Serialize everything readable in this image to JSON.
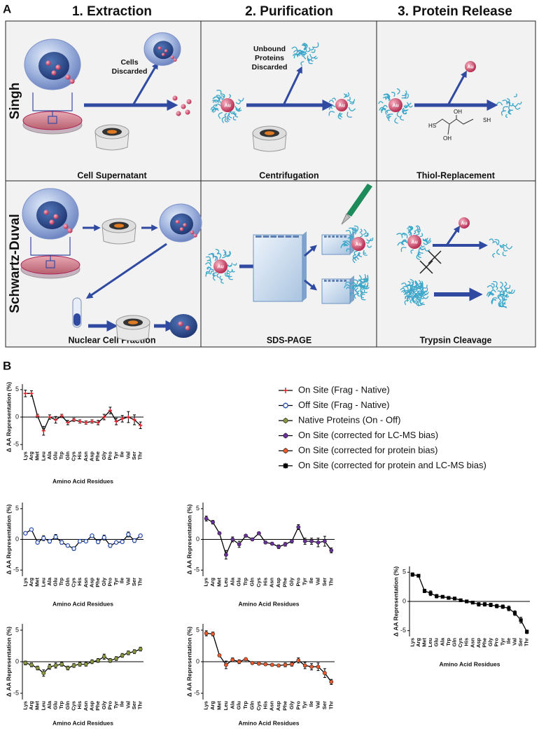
{
  "panel_a": {
    "label": "A",
    "columns": [
      "1. Extraction",
      "2. Purification",
      "3. Protein Release"
    ],
    "rows": [
      "Singh",
      "Schwartz-Duval"
    ],
    "captions": [
      [
        "Cell Supernatant",
        "Centrifugation",
        "Thiol-Replacement"
      ],
      [
        "Nuclear Cell Fraction",
        "SDS-PAGE",
        "Trypsin Cleavage"
      ]
    ],
    "cells_discarded": [
      "Cells",
      "Discarded"
    ],
    "proteins_discarded": [
      "Unbound",
      "Proteins",
      "Discarded"
    ],
    "au_label": "Au",
    "chem_labels": [
      "HS",
      "OH",
      "OH",
      "SH"
    ]
  },
  "panel_b": {
    "label": "B"
  },
  "chart_data": [
    {
      "type": "line",
      "marker": "plus",
      "ylim": [
        -6,
        6
      ],
      "yticks": [
        5,
        0,
        -5
      ],
      "y_label": "Δ AA Representation (%)",
      "x_label": "Amino Acid Residues",
      "categories": [
        "Lys",
        "Arg",
        "Met",
        "Leu",
        "Ala",
        "Glu",
        "Trp",
        "Gln",
        "Cys",
        "His",
        "Asn",
        "Asp",
        "Phe",
        "Gly",
        "Pro",
        "Tyr",
        "Ile",
        "Val",
        "Ser",
        "Thr"
      ],
      "series": [
        {
          "name": "On Site (Frag - Native)",
          "color": "#e8202a",
          "values": [
            4.3,
            4.3,
            0.2,
            -2.5,
            0,
            -0.5,
            0.2,
            -1,
            -0.5,
            -0.8,
            -1,
            -0.8,
            -1,
            0,
            1.2,
            -0.8,
            -0.3,
            0,
            -0.5,
            -1.5
          ],
          "errors": [
            0.6,
            0.5,
            0.3,
            0.8,
            0.4,
            0.6,
            0.3,
            0.4,
            0.3,
            0.3,
            0.3,
            0.3,
            0.4,
            0.5,
            0.6,
            0.6,
            0.6,
            1.0,
            0.9,
            0.6
          ]
        }
      ]
    },
    {
      "type": "line",
      "marker": "open-circle",
      "ylim": [
        -6,
        6
      ],
      "yticks": [
        5,
        0,
        -5
      ],
      "y_label": "Δ AA Representation (%)",
      "x_label": "Amino Acid Residues",
      "categories": [
        "Lys",
        "Arg",
        "Met",
        "Leu",
        "Ala",
        "Glu",
        "Trp",
        "Gln",
        "Cys",
        "His",
        "Asn",
        "Asp",
        "Phe",
        "Gly",
        "Pro",
        "Tyr",
        "Ile",
        "Val",
        "Ser",
        "Thr"
      ],
      "series": [
        {
          "name": "Off Site (Frag - Native)",
          "color": "#2a4fb0",
          "values": [
            1,
            1.6,
            -0.5,
            0.2,
            -0.3,
            0.4,
            -0.5,
            -1,
            -1.5,
            -0.3,
            -0.3,
            0.6,
            -0.4,
            0.3,
            -1,
            -0.5,
            -0.4,
            0.8,
            -0.2,
            0.6
          ],
          "errors": [
            0.2,
            0.2,
            0.2,
            0.4,
            0.3,
            0.4,
            0.3,
            0.2,
            0.3,
            0.2,
            0.2,
            0.2,
            0.3,
            0.4,
            0.3,
            0.2,
            0.2,
            0.4,
            0.3,
            0.2
          ]
        }
      ]
    },
    {
      "type": "line",
      "marker": "circle",
      "ylim": [
        -6,
        6
      ],
      "yticks": [
        5,
        0,
        -5
      ],
      "y_label": "Δ AA Representation (%)",
      "x_label": "Amino Acid Residues",
      "categories": [
        "Lys",
        "Arg",
        "Met",
        "Leu",
        "Ala",
        "Glu",
        "Trp",
        "Gln",
        "Cys",
        "His",
        "Asn",
        "Asp",
        "Phe",
        "Gly",
        "Pro",
        "Tyr",
        "Ile",
        "Val",
        "Ser",
        "Thr"
      ],
      "series": [
        {
          "name": "Native Proteins (On - Off)",
          "color": "#8a9a3a",
          "values": [
            -0.2,
            -0.5,
            -1,
            -1.8,
            -0.8,
            -0.6,
            -0.4,
            -1,
            -0.6,
            -0.4,
            -0.4,
            0,
            0.2,
            0.8,
            0.2,
            0.5,
            1,
            1.4,
            1.6,
            2
          ],
          "errors": [
            0.3,
            0.3,
            0.3,
            0.5,
            0.4,
            0.4,
            0.3,
            0.3,
            0.3,
            0.3,
            0.3,
            0.3,
            0.3,
            0.4,
            0.3,
            0.3,
            0.3,
            0.3,
            0.3,
            0.3
          ]
        }
      ]
    },
    {
      "type": "line",
      "marker": "circle",
      "ylim": [
        -6,
        6
      ],
      "yticks": [
        5,
        0,
        -5
      ],
      "y_label": "Δ AA Representation (%)",
      "x_label": "Amino Acid Residues",
      "categories": [
        "Lys",
        "Arg",
        "Met",
        "Leu",
        "Ala",
        "Glu",
        "Trp",
        "Gln",
        "Cys",
        "His",
        "Asn",
        "Asp",
        "Phe",
        "Gly",
        "Pro",
        "Tyr",
        "Ile",
        "Val",
        "Ser",
        "Thr"
      ],
      "series": [
        {
          "name": "On Site (corrected for LC-MS bias)",
          "color": "#6b2fa0",
          "values": [
            3.4,
            2.8,
            1,
            -2.5,
            0,
            -0.8,
            0.6,
            0,
            1,
            -0.5,
            -0.7,
            -1.2,
            -0.8,
            -0.3,
            2,
            -0.3,
            -0.3,
            -0.5,
            -0.3,
            -1.8
          ],
          "errors": [
            0.4,
            0.3,
            0.2,
            0.7,
            0.4,
            0.5,
            0.2,
            0.2,
            0.2,
            0.2,
            0.2,
            0.3,
            0.3,
            0.3,
            0.4,
            0.5,
            0.5,
            0.7,
            0.8,
            0.4
          ]
        }
      ]
    },
    {
      "type": "line",
      "marker": "circle",
      "ylim": [
        -6,
        6
      ],
      "yticks": [
        5,
        0,
        -5
      ],
      "y_label": "Δ AA Representation (%)",
      "x_label": "Amino Acid Residues",
      "categories": [
        "Lys",
        "Arg",
        "Met",
        "Leu",
        "Ala",
        "Glu",
        "Trp",
        "Gln",
        "Cys",
        "His",
        "Asn",
        "Asp",
        "Phe",
        "Gly",
        "Pro",
        "Tyr",
        "Ile",
        "Val",
        "Ser",
        "Thr"
      ],
      "series": [
        {
          "name": "On Site (corrected for protein bias)",
          "color": "#f05a28",
          "values": [
            4.5,
            4.4,
            1,
            -0.5,
            0.3,
            0,
            0.4,
            -0.2,
            -0.3,
            -0.4,
            -0.5,
            -0.6,
            -0.5,
            -0.4,
            0.2,
            -0.6,
            -0.8,
            -0.8,
            -1.8,
            -3.2
          ],
          "errors": [
            0.4,
            0.3,
            0.2,
            0.6,
            0.3,
            0.3,
            0.2,
            0.2,
            0.2,
            0.2,
            0.2,
            0.2,
            0.3,
            0.3,
            0.4,
            0.5,
            0.5,
            0.6,
            0.7,
            0.4
          ]
        }
      ]
    },
    {
      "type": "line",
      "marker": "square",
      "ylim": [
        -6,
        6
      ],
      "yticks": [
        5,
        0,
        -5
      ],
      "y_label": "Δ AA Representation (%)",
      "x_label": "Amino Acid Residues",
      "categories": [
        "Lys",
        "Arg",
        "Met",
        "Leu",
        "Glu",
        "Ala",
        "Trp",
        "Gln",
        "Cys",
        "His",
        "Asn",
        "Asp",
        "Phe",
        "Gly",
        "Pro",
        "Tyr",
        "Ile",
        "Val",
        "Ser",
        "Thr"
      ],
      "series": [
        {
          "name": "On Site (corrected for protein and LC-MS bias)",
          "color": "#000000",
          "values": [
            4.6,
            4.4,
            1.8,
            1.4,
            0.9,
            0.8,
            0.6,
            0.5,
            0.2,
            0,
            -0.2,
            -0.5,
            -0.5,
            -0.6,
            -0.8,
            -0.9,
            -1.2,
            -2,
            -3.2,
            -5.2
          ],
          "errors": [
            0.3,
            0.2,
            0.3,
            0.4,
            0.3,
            0.2,
            0.2,
            0.2,
            0.2,
            0.2,
            0.2,
            0.3,
            0.3,
            0.3,
            0.3,
            0.3,
            0.4,
            0.4,
            0.5,
            0.3
          ]
        }
      ]
    }
  ]
}
